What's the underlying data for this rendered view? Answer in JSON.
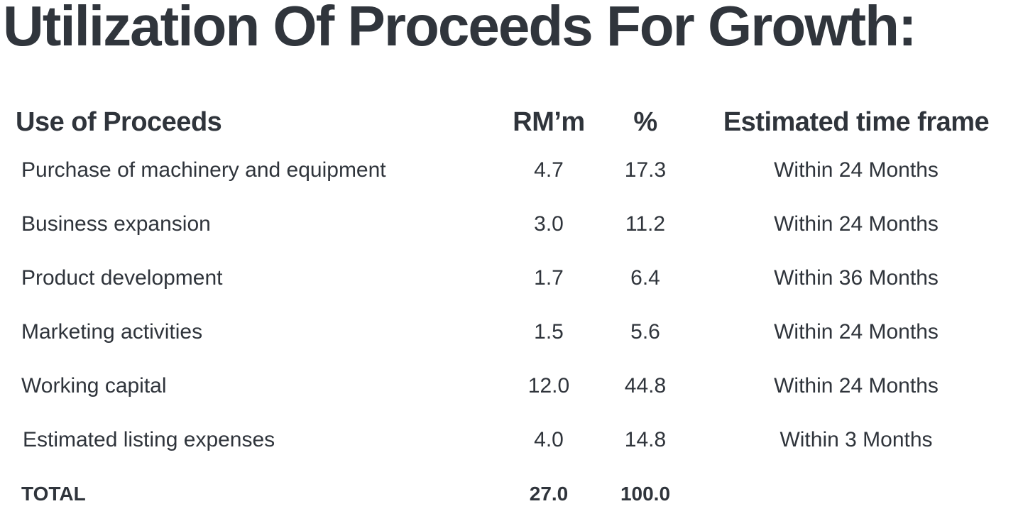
{
  "title": "Utilization Of Proceeds For Growth:",
  "table": {
    "headers": {
      "use": "Use of Proceeds",
      "amount": "RM’m",
      "percent": "%",
      "timeframe": "Estimated time frame"
    },
    "rows": [
      {
        "use": "Purchase of machinery and equipment",
        "amount": "4.7",
        "percent": "17.3",
        "timeframe": "Within 24 Months"
      },
      {
        "use": "Business expansion",
        "amount": "3.0",
        "percent": "11.2",
        "timeframe": "Within 24 Months"
      },
      {
        "use": "Product development",
        "amount": "1.7",
        "percent": "6.4",
        "timeframe": "Within 36 Months"
      },
      {
        "use": "Marketing activities",
        "amount": "1.5",
        "percent": "5.6",
        "timeframe": "Within 24 Months"
      },
      {
        "use": "Working capital",
        "amount": "12.0",
        "percent": "44.8",
        "timeframe": "Within 24 Months"
      },
      {
        "use": "Estimated listing expenses",
        "amount": "4.0",
        "percent": "14.8",
        "timeframe": "Within 3 Months"
      }
    ],
    "total": {
      "label": "TOTAL",
      "amount": "27.0",
      "percent": "100.0"
    }
  }
}
